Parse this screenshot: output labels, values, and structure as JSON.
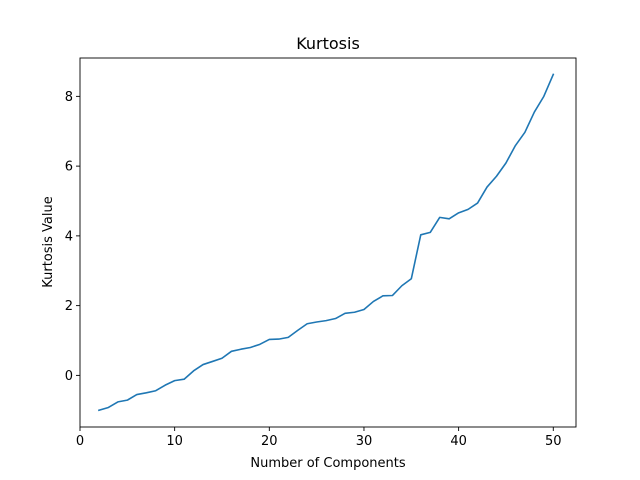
{
  "chart_data": {
    "type": "line",
    "title": "Kurtosis",
    "xlabel": "Number of Components",
    "ylabel": "Kurtosis Value",
    "xlim": [
      0,
      52.4
    ],
    "ylim": [
      -1.48,
      9.1
    ],
    "xticks": [
      0,
      10,
      20,
      30,
      40,
      50
    ],
    "yticks": [
      0,
      2,
      4,
      6,
      8
    ],
    "grid": false,
    "line_color": "#1f77b4",
    "series": [
      {
        "x": [
          2,
          3,
          4,
          5,
          6,
          7,
          8,
          9,
          10,
          11,
          12,
          13,
          14,
          15,
          16,
          17,
          18,
          19,
          20,
          21,
          22,
          23,
          24,
          25,
          26,
          27,
          28,
          29,
          30,
          31,
          32,
          33,
          34,
          35,
          36,
          37,
          38,
          39,
          40,
          41,
          42,
          43,
          44,
          45,
          46,
          47,
          48,
          49,
          50
        ],
        "values": [
          -1.0,
          -0.92,
          -0.76,
          -0.71,
          -0.55,
          -0.5,
          -0.44,
          -0.28,
          -0.15,
          -0.11,
          0.13,
          0.31,
          0.4,
          0.49,
          0.69,
          0.75,
          0.8,
          0.89,
          1.03,
          1.04,
          1.09,
          1.29,
          1.48,
          1.53,
          1.57,
          1.63,
          1.78,
          1.81,
          1.89,
          2.12,
          2.28,
          2.29,
          2.57,
          2.77,
          4.03,
          4.1,
          4.53,
          4.49,
          4.66,
          4.76,
          4.94,
          5.4,
          5.71,
          6.09,
          6.59,
          6.97,
          7.55,
          8.0,
          8.63
        ]
      }
    ]
  }
}
